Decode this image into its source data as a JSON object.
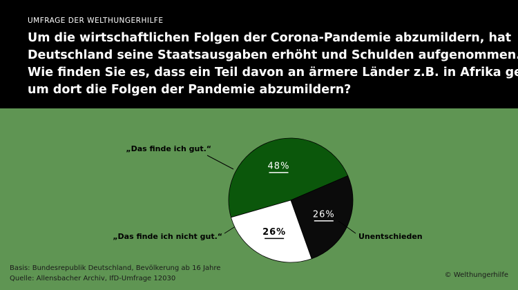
{
  "header": {
    "kicker": "UMFRAGE DER WELTHUNGERHILFE",
    "title": [
      "Um die wirtschaftlichen Folgen der Corona-Pandemie abzumildern, hat",
      "Deutschland seine Staatsausgaben erhöht und Schulden aufgenommen.",
      "Wie finden Sie es, dass ein Teil davon an ärmere Länder z.B. in Afrika geht,",
      "um dort die Folgen der Pandemie abzumildern?"
    ]
  },
  "chart_data": {
    "type": "pie",
    "categories": [
      "„Das finde ich gut.“",
      "„Das finde ich nicht gut.“",
      "Unentschieden"
    ],
    "values": [
      48,
      26,
      26
    ],
    "value_labels": [
      "48%",
      "26%",
      "26%"
    ],
    "colors": [
      "#0b570b",
      "#0b0b0b",
      "#ffffff"
    ]
  },
  "footer": {
    "basis": "Basis: Bundesrepublik Deutschland, Bevölkerung ab 16 Jahre",
    "source": "Quelle: Allensbacher Archiv, IfD-Umfrage 12030",
    "copyright": "© Welthungerhilfe"
  }
}
